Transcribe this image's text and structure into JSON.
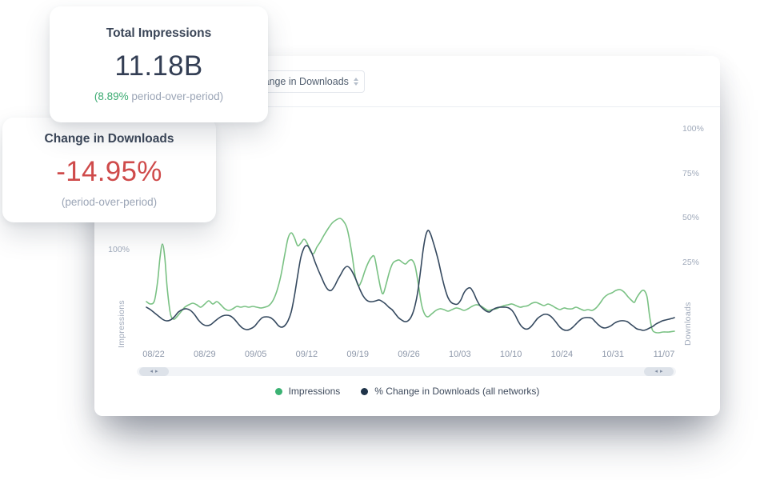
{
  "cards": {
    "total_impressions": {
      "title": "Total Impressions",
      "value": "11.18B",
      "delta_highlight": "(8.89%",
      "delta_rest": " period-over-period)"
    },
    "change_in_downloads": {
      "title": "Change in Downloads",
      "value": "-14.95%",
      "subtitle": "(period-over-period)"
    }
  },
  "toolbar": {
    "metric_dropdown_value": "% Change in Downloads"
  },
  "colors": {
    "legend_green": "#3bb273",
    "legend_navy": "#1f3349",
    "line_green": "#79c183",
    "line_navy": "#35495f",
    "value_red": "#cf4b4b",
    "value_navy": "#333e54"
  },
  "chart_data": {
    "type": "line",
    "coord_space": "page_pixels_960x600",
    "x_labels": [
      "08/22",
      "08/29",
      "09/05",
      "09/12",
      "09/19",
      "09/26",
      "10/03",
      "10/10",
      "10/24",
      "10/31",
      "11/07"
    ],
    "left_axis": {
      "title": "Impressions",
      "visible_ticks": [
        "100%"
      ]
    },
    "right_axis": {
      "title": "Downloads",
      "ticks": [
        "100%",
        "75%",
        "50%",
        "25%"
      ]
    },
    "legend": [
      {
        "label": "Impressions",
        "color": "#3bb273"
      },
      {
        "label": "% Change in Downloads (all networks)",
        "color": "#1f3349"
      }
    ],
    "series": [
      {
        "name": "Impressions",
        "axis": "left",
        "color": "#79c183",
        "points": [
          [
            183,
            377
          ],
          [
            188,
            380
          ],
          [
            193,
            376
          ],
          [
            197,
            352
          ],
          [
            200,
            322
          ],
          [
            203,
            305
          ],
          [
            206,
            322
          ],
          [
            209,
            360
          ],
          [
            213,
            392
          ],
          [
            217,
            399
          ],
          [
            221,
            396
          ],
          [
            226,
            390
          ],
          [
            231,
            384
          ],
          [
            236,
            381
          ],
          [
            241,
            379
          ],
          [
            246,
            381
          ],
          [
            251,
            384
          ],
          [
            256,
            380
          ],
          [
            261,
            376
          ],
          [
            266,
            380
          ],
          [
            271,
            377
          ],
          [
            276,
            381
          ],
          [
            281,
            386
          ],
          [
            286,
            388
          ],
          [
            291,
            386
          ],
          [
            296,
            383
          ],
          [
            301,
            384
          ],
          [
            306,
            383
          ],
          [
            311,
            384
          ],
          [
            316,
            383
          ],
          [
            321,
            384
          ],
          [
            326,
            385
          ],
          [
            331,
            384
          ],
          [
            336,
            382
          ],
          [
            341,
            376
          ],
          [
            346,
            364
          ],
          [
            351,
            345
          ],
          [
            356,
            318
          ],
          [
            360,
            298
          ],
          [
            364,
            291
          ],
          [
            368,
            297
          ],
          [
            372,
            307
          ],
          [
            376,
            304
          ],
          [
            380,
            299
          ],
          [
            384,
            304
          ],
          [
            388,
            314
          ],
          [
            392,
            317
          ],
          [
            396,
            309
          ],
          [
            400,
            303
          ],
          [
            405,
            294
          ],
          [
            410,
            286
          ],
          [
            415,
            279
          ],
          [
            420,
            275
          ],
          [
            425,
            273
          ],
          [
            429,
            276
          ],
          [
            433,
            283
          ],
          [
            436,
            295
          ],
          [
            440,
            318
          ],
          [
            444,
            345
          ],
          [
            448,
            357
          ],
          [
            452,
            351
          ],
          [
            456,
            339
          ],
          [
            460,
            329
          ],
          [
            464,
            322
          ],
          [
            468,
            321
          ],
          [
            472,
            341
          ],
          [
            476,
            361
          ],
          [
            479,
            367
          ],
          [
            483,
            354
          ],
          [
            487,
            339
          ],
          [
            491,
            329
          ],
          [
            495,
            326
          ],
          [
            499,
            325
          ],
          [
            503,
            328
          ],
          [
            507,
            330
          ],
          [
            511,
            326
          ],
          [
            515,
            325
          ],
          [
            519,
            333
          ],
          [
            523,
            356
          ],
          [
            527,
            381
          ],
          [
            531,
            393
          ],
          [
            535,
            396
          ],
          [
            540,
            392
          ],
          [
            545,
            388
          ],
          [
            550,
            386
          ],
          [
            555,
            387
          ],
          [
            560,
            389
          ],
          [
            565,
            387
          ],
          [
            570,
            385
          ],
          [
            575,
            386
          ],
          [
            580,
            388
          ],
          [
            585,
            386
          ],
          [
            590,
            383
          ],
          [
            595,
            381
          ],
          [
            600,
            382
          ],
          [
            605,
            385
          ],
          [
            610,
            388
          ],
          [
            615,
            387
          ],
          [
            620,
            386
          ],
          [
            625,
            384
          ],
          [
            630,
            382
          ],
          [
            635,
            381
          ],
          [
            640,
            380
          ],
          [
            645,
            382
          ],
          [
            650,
            384
          ],
          [
            655,
            383
          ],
          [
            660,
            382
          ],
          [
            665,
            379
          ],
          [
            670,
            378
          ],
          [
            675,
            380
          ],
          [
            680,
            382
          ],
          [
            685,
            380
          ],
          [
            690,
            382
          ],
          [
            695,
            385
          ],
          [
            700,
            387
          ],
          [
            705,
            385
          ],
          [
            710,
            386
          ],
          [
            715,
            386
          ],
          [
            720,
            384
          ],
          [
            725,
            386
          ],
          [
            730,
            388
          ],
          [
            735,
            387
          ],
          [
            740,
            388
          ],
          [
            745,
            385
          ],
          [
            750,
            379
          ],
          [
            755,
            372
          ],
          [
            760,
            368
          ],
          [
            765,
            366
          ],
          [
            770,
            363
          ],
          [
            775,
            362
          ],
          [
            780,
            365
          ],
          [
            785,
            371
          ],
          [
            790,
            376
          ],
          [
            793,
            378
          ],
          [
            796,
            372
          ],
          [
            800,
            366
          ],
          [
            803,
            363
          ],
          [
            806,
            364
          ],
          [
            809,
            372
          ],
          [
            812,
            395
          ],
          [
            815,
            411
          ],
          [
            818,
            415
          ],
          [
            823,
            416
          ],
          [
            829,
            415
          ],
          [
            836,
            415
          ],
          [
            843,
            414
          ]
        ]
      },
      {
        "name": "% Change in Downloads (all networks)",
        "axis": "right",
        "color": "#35495f",
        "points": [
          [
            183,
            384
          ],
          [
            188,
            387
          ],
          [
            193,
            391
          ],
          [
            198,
            395
          ],
          [
            203,
            399
          ],
          [
            208,
            401
          ],
          [
            213,
            400
          ],
          [
            218,
            396
          ],
          [
            223,
            390
          ],
          [
            228,
            387
          ],
          [
            233,
            386
          ],
          [
            238,
            388
          ],
          [
            243,
            393
          ],
          [
            248,
            400
          ],
          [
            253,
            405
          ],
          [
            258,
            407
          ],
          [
            263,
            406
          ],
          [
            268,
            402
          ],
          [
            273,
            398
          ],
          [
            278,
            395
          ],
          [
            283,
            394
          ],
          [
            288,
            395
          ],
          [
            293,
            399
          ],
          [
            298,
            405
          ],
          [
            303,
            410
          ],
          [
            308,
            412
          ],
          [
            313,
            411
          ],
          [
            318,
            408
          ],
          [
            323,
            402
          ],
          [
            328,
            397
          ],
          [
            333,
            396
          ],
          [
            338,
            397
          ],
          [
            343,
            401
          ],
          [
            348,
            407
          ],
          [
            352,
            409
          ],
          [
            356,
            407
          ],
          [
            360,
            401
          ],
          [
            364,
            390
          ],
          [
            368,
            370
          ],
          [
            372,
            345
          ],
          [
            376,
            322
          ],
          [
            380,
            310
          ],
          [
            383,
            307
          ],
          [
            386,
            309
          ],
          [
            390,
            317
          ],
          [
            394,
            328
          ],
          [
            398,
            338
          ],
          [
            402,
            347
          ],
          [
            406,
            356
          ],
          [
            410,
            362
          ],
          [
            414,
            363
          ],
          [
            418,
            358
          ],
          [
            422,
            350
          ],
          [
            426,
            343
          ],
          [
            430,
            336
          ],
          [
            434,
            333
          ],
          [
            438,
            336
          ],
          [
            442,
            343
          ],
          [
            446,
            352
          ],
          [
            450,
            362
          ],
          [
            454,
            370
          ],
          [
            458,
            375
          ],
          [
            462,
            377
          ],
          [
            466,
            377
          ],
          [
            470,
            376
          ],
          [
            474,
            375
          ],
          [
            478,
            377
          ],
          [
            482,
            380
          ],
          [
            486,
            384
          ],
          [
            490,
            387
          ],
          [
            494,
            392
          ],
          [
            498,
            397
          ],
          [
            502,
            400
          ],
          [
            506,
            402
          ],
          [
            510,
            401
          ],
          [
            514,
            396
          ],
          [
            518,
            385
          ],
          [
            522,
            366
          ],
          [
            526,
            336
          ],
          [
            529,
            312
          ],
          [
            532,
            295
          ],
          [
            535,
            288
          ],
          [
            538,
            292
          ],
          [
            541,
            301
          ],
          [
            544,
            311
          ],
          [
            548,
            326
          ],
          [
            552,
            344
          ],
          [
            556,
            360
          ],
          [
            560,
            372
          ],
          [
            564,
            378
          ],
          [
            568,
            380
          ],
          [
            572,
            380
          ],
          [
            576,
            375
          ],
          [
            580,
            366
          ],
          [
            584,
            361
          ],
          [
            588,
            360
          ],
          [
            592,
            366
          ],
          [
            596,
            375
          ],
          [
            600,
            382
          ],
          [
            604,
            386
          ],
          [
            608,
            389
          ],
          [
            612,
            390
          ],
          [
            616,
            387
          ],
          [
            620,
            385
          ],
          [
            624,
            384
          ],
          [
            628,
            384
          ],
          [
            632,
            384
          ],
          [
            636,
            385
          ],
          [
            640,
            388
          ],
          [
            644,
            394
          ],
          [
            648,
            402
          ],
          [
            652,
            408
          ],
          [
            656,
            411
          ],
          [
            660,
            411
          ],
          [
            664,
            408
          ],
          [
            668,
            403
          ],
          [
            672,
            398
          ],
          [
            676,
            395
          ],
          [
            680,
            393
          ],
          [
            684,
            393
          ],
          [
            688,
            395
          ],
          [
            692,
            399
          ],
          [
            696,
            404
          ],
          [
            700,
            409
          ],
          [
            704,
            412
          ],
          [
            708,
            413
          ],
          [
            712,
            412
          ],
          [
            716,
            409
          ],
          [
            720,
            405
          ],
          [
            724,
            401
          ],
          [
            728,
            398
          ],
          [
            732,
            397
          ],
          [
            736,
            397
          ],
          [
            740,
            398
          ],
          [
            744,
            402
          ],
          [
            748,
            406
          ],
          [
            752,
            409
          ],
          [
            756,
            410
          ],
          [
            760,
            409
          ],
          [
            764,
            407
          ],
          [
            768,
            404
          ],
          [
            772,
            402
          ],
          [
            776,
            401
          ],
          [
            780,
            401
          ],
          [
            784,
            402
          ],
          [
            788,
            405
          ],
          [
            792,
            408
          ],
          [
            796,
            411
          ],
          [
            800,
            412
          ],
          [
            804,
            413
          ],
          [
            808,
            412
          ],
          [
            812,
            410
          ],
          [
            816,
            408
          ],
          [
            820,
            405
          ],
          [
            824,
            403
          ],
          [
            828,
            401
          ],
          [
            832,
            400
          ],
          [
            836,
            399
          ],
          [
            840,
            398
          ],
          [
            843,
            397
          ]
        ]
      }
    ]
  }
}
